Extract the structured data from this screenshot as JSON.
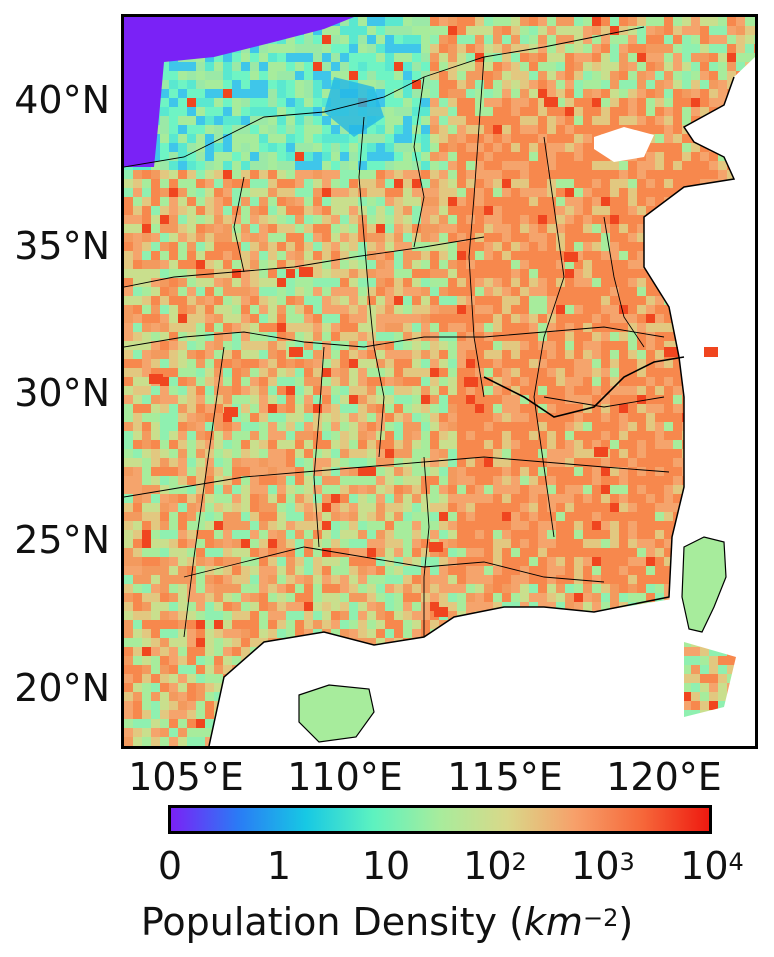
{
  "map": {
    "lat_labels": [
      "40°N",
      "35°N",
      "30°N",
      "25°N",
      "20°N"
    ],
    "lon_labels": [
      "105°E",
      "110°E",
      "115°E",
      "120°E"
    ],
    "colors": {
      "land_base": "#a7ec9c",
      "high": "#f7884d",
      "very_high": "#f0451f",
      "low": "#24b6e6",
      "none": "#7a22f6",
      "ocean": "#ffffff",
      "border": "#000000"
    }
  },
  "colorbar": {
    "ticks": [
      {
        "base": "0",
        "exp": ""
      },
      {
        "base": "1",
        "exp": ""
      },
      {
        "base": "10",
        "exp": ""
      },
      {
        "base": "10",
        "exp": "2"
      },
      {
        "base": "10",
        "exp": "3"
      },
      {
        "base": "10",
        "exp": "4"
      }
    ],
    "label_prefix": "Population Density (",
    "label_unit": "km",
    "label_exp": "−2",
    "label_suffix": ")",
    "gradient": [
      "#7a22f6",
      "#2a7bf5",
      "#17c8e4",
      "#5cf2c0",
      "#a8ec9c",
      "#d9d889",
      "#f7a06a",
      "#f6683a",
      "#ee1a10"
    ]
  }
}
